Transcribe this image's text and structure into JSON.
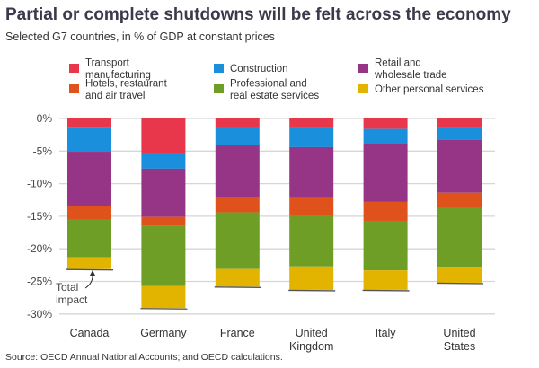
{
  "chart_data": {
    "type": "bar",
    "stacked": true,
    "title": "Partial or complete shutdowns will be felt across the economy",
    "subtitle": "Selected G7 countries, in % of GDP at constant prices",
    "source": "Source: OECD Annual National Accounts; and OECD calculations.",
    "categories": [
      [
        "Canada"
      ],
      [
        "Germany"
      ],
      [
        "France"
      ],
      [
        "United",
        "Kingdom"
      ],
      [
        "Italy"
      ],
      [
        "United",
        "States"
      ]
    ],
    "series": [
      {
        "name": "Transport manufacturing",
        "legend_lines": [
          "Transport",
          "manufacturing"
        ],
        "color": "#e8374a",
        "values": [
          -1.4,
          -5.5,
          -1.3,
          -1.5,
          -1.6,
          -1.5
        ]
      },
      {
        "name": "Construction",
        "legend_lines": [
          "Construction"
        ],
        "color": "#1a8fdb",
        "values": [
          -3.7,
          -2.2,
          -2.8,
          -2.9,
          -2.2,
          -1.8
        ]
      },
      {
        "name": "Retail and wholesale trade",
        "legend_lines": [
          "Retail and",
          "wholesale trade"
        ],
        "color": "#963585",
        "values": [
          -8.3,
          -7.4,
          -8.0,
          -7.8,
          -9.0,
          -8.1
        ]
      },
      {
        "name": "Hotels, restaurant and air travel",
        "legend_lines": [
          "Hotels, restaurant",
          "and air travel"
        ],
        "color": "#e0521c",
        "values": [
          -2.1,
          -1.3,
          -2.3,
          -2.6,
          -2.9,
          -2.3
        ]
      },
      {
        "name": "Professional and real estate services",
        "legend_lines": [
          "Professional and",
          "real estate services"
        ],
        "color": "#6f9e26",
        "values": [
          -5.8,
          -9.3,
          -8.7,
          -7.9,
          -7.6,
          -9.2
        ]
      },
      {
        "name": "Other personal services",
        "legend_lines": [
          "Other personal services"
        ],
        "color": "#e2b400",
        "values": [
          -1.8,
          -3.4,
          -2.7,
          -3.6,
          -3.0,
          -2.3
        ]
      }
    ],
    "totals": [
      -23.1,
      -29.1,
      -25.8,
      -26.3,
      -26.3,
      -25.2
    ],
    "annotation": [
      "Total",
      "impact"
    ],
    "yticks": [
      0,
      -5,
      -10,
      -15,
      -20,
      -25,
      -30
    ],
    "ytick_labels": [
      "0%",
      "-5%",
      "-10%",
      "-15%",
      "-20%",
      "-25%",
      "-30%"
    ],
    "ylim": [
      -30,
      0
    ],
    "grid": true,
    "legend_placement": "top"
  }
}
